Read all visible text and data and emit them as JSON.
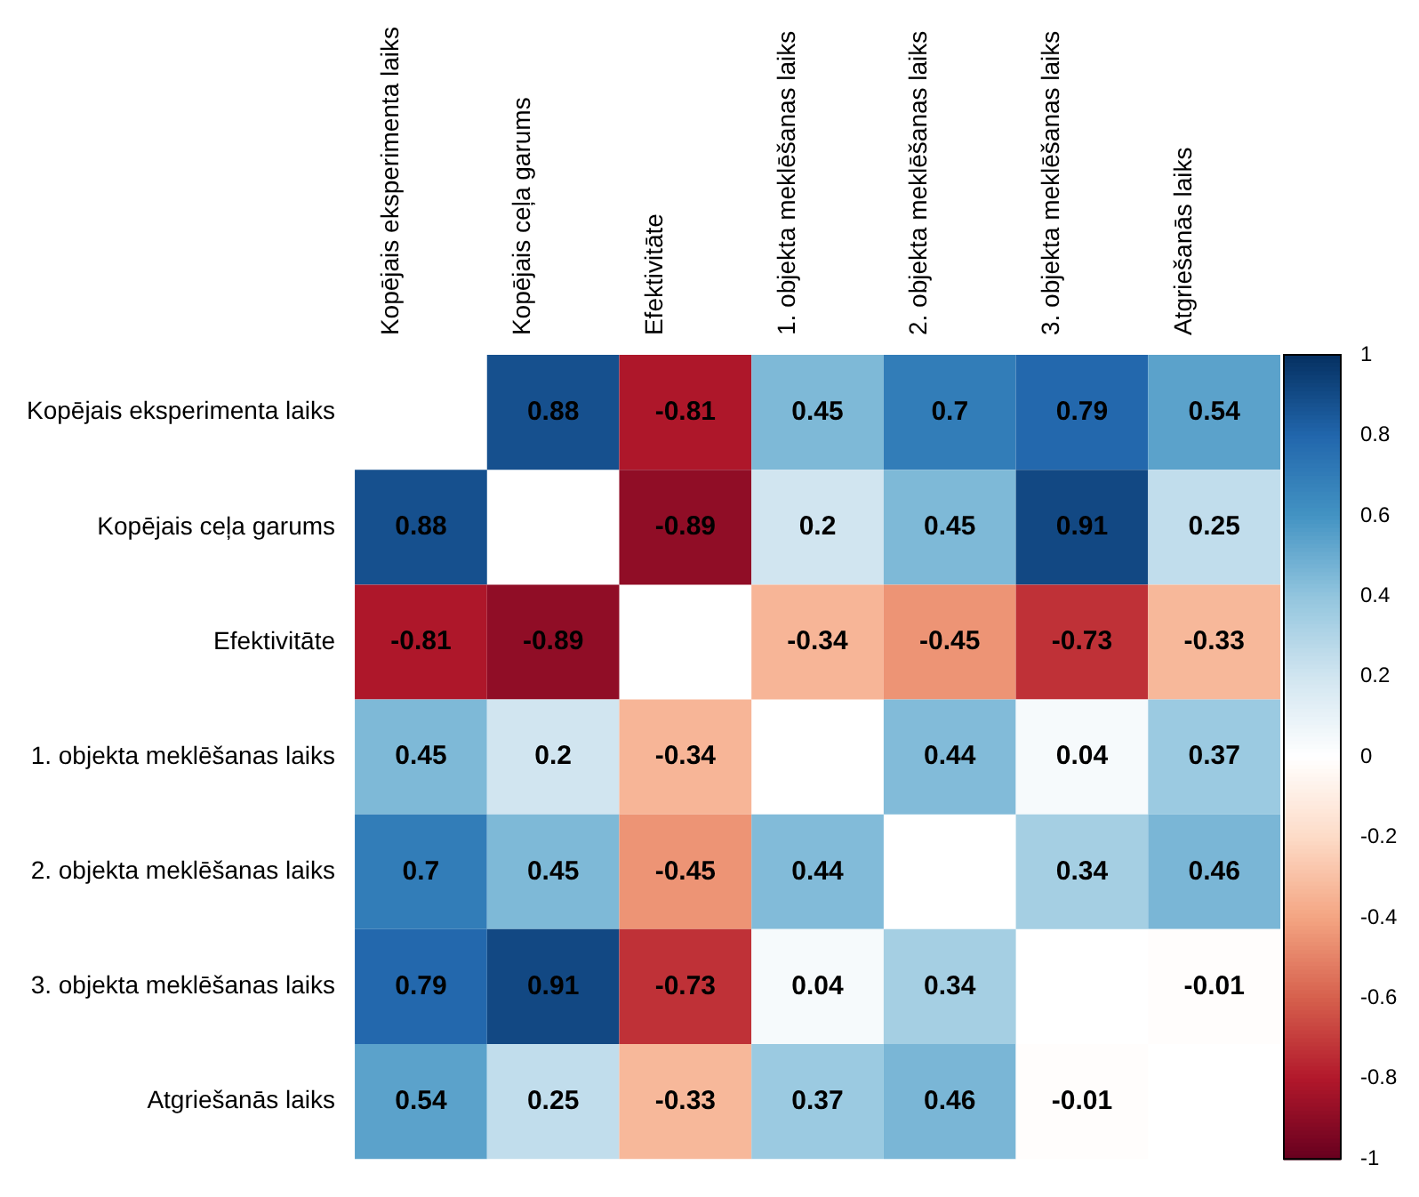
{
  "chart_data": {
    "type": "heatmap",
    "categories": [
      "Kopējais eksperimenta laiks",
      "Kopējais ceļa garums",
      "Efektivitāte",
      "1. objekta meklēšanas laiks",
      "2. objekta meklēšanas laiks",
      "3. objekta meklēšanas laiks",
      "Atgriešanās laiks"
    ],
    "y_categories": [
      "Kopējais eksperimenta laiks",
      "Kopējais ceļa garums",
      "Efektivitāte",
      "1. objekta meklēšanas laiks",
      "2. objekta meklēšanas laiks",
      "3. objekta meklēšanas laiks",
      "Atgriešanās laiks"
    ],
    "cells": [
      [
        null,
        0.88,
        -0.81,
        0.45,
        0.7,
        0.79,
        0.54
      ],
      [
        0.88,
        null,
        -0.89,
        0.2,
        0.45,
        0.91,
        0.25
      ],
      [
        -0.81,
        -0.89,
        null,
        -0.34,
        -0.45,
        -0.73,
        -0.33
      ],
      [
        0.45,
        0.2,
        -0.34,
        null,
        0.44,
        0.04,
        0.37
      ],
      [
        0.7,
        0.45,
        -0.45,
        0.44,
        null,
        0.34,
        0.46
      ],
      [
        0.79,
        0.91,
        -0.73,
        0.04,
        0.34,
        null,
        -0.01
      ],
      [
        0.54,
        0.25,
        -0.33,
        0.37,
        0.46,
        -0.01,
        null
      ]
    ],
    "data_labels": true,
    "clim": [
      -1,
      1
    ],
    "cticks": [
      -1,
      -0.8,
      -0.6,
      -0.4,
      -0.2,
      0,
      0.2,
      0.4,
      0.6,
      0.8,
      1
    ]
  }
}
